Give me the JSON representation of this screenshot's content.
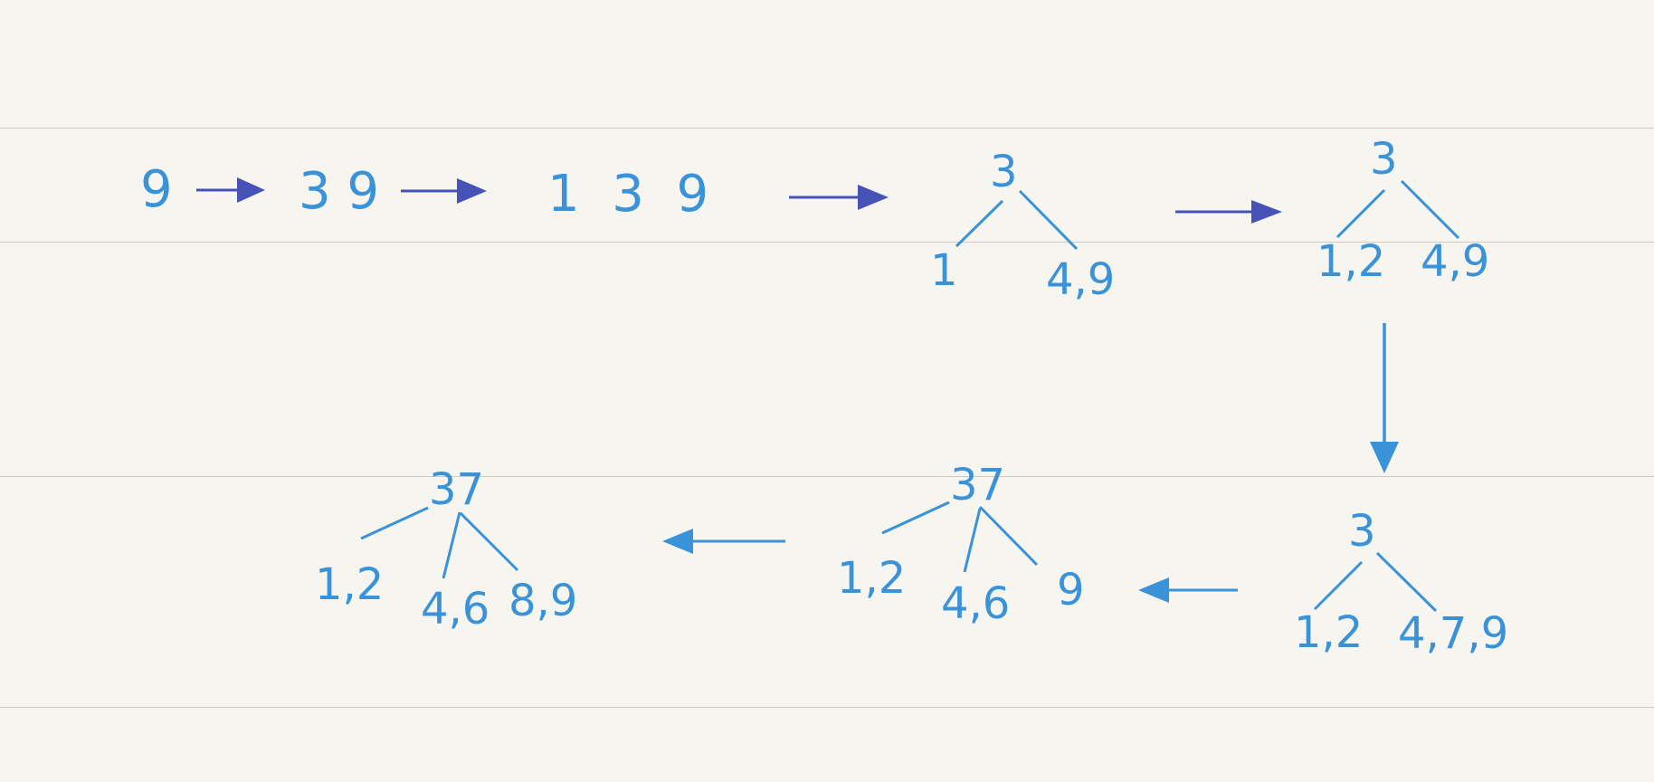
{
  "colors": {
    "ink": "#3a92d8",
    "arrow_dark": "#4652b6",
    "arrow_light": "#3a92d8",
    "paper": "#f7f5f0",
    "rule": "#cfcbc4"
  },
  "steps": {
    "s1": {
      "keys": "9"
    },
    "s2": {
      "keys": "3 9"
    },
    "s3": {
      "keys": "1  3  9"
    },
    "s4": {
      "root": "3",
      "left": "1",
      "right": "4,9"
    },
    "s5": {
      "root": "3",
      "left": "1,2",
      "right": "4,9"
    },
    "s6": {
      "root": "3",
      "left": "1,2",
      "right": "4,7,9"
    },
    "s7": {
      "root": "37",
      "left": "1,2",
      "middle": "4,6",
      "right": "9"
    },
    "s8": {
      "root": "37",
      "left": "1,2",
      "middle": "4,6",
      "right": "8,9"
    }
  }
}
